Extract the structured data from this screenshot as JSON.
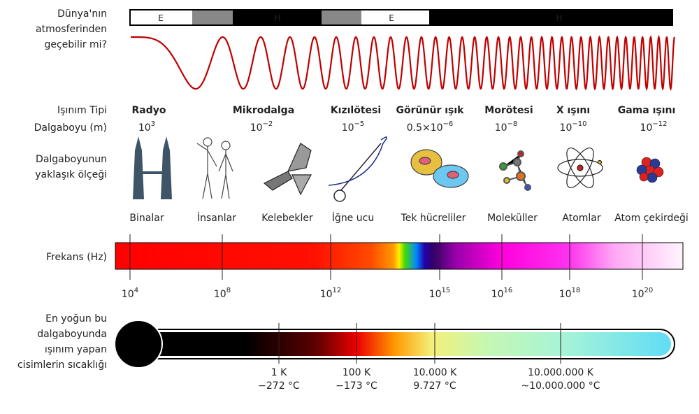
{
  "row_labels": {
    "atmosphere": [
      "Dünya'nın",
      "atmosferinden",
      "geçebilir mi?"
    ],
    "type": "Işınım Tipi",
    "wavelength": "Dalgaboyu (m)",
    "scale": [
      "Dalgaboyunun",
      "yaklaşık ölçeği"
    ],
    "frequency": "Frekans (Hz)",
    "temperature": [
      "En yoğun bu",
      "dalgaboyunda",
      "ışınım yapan",
      "cisimlerin sıcaklığı"
    ]
  },
  "atmosphere": [
    "E",
    "H",
    "E",
    "H"
  ],
  "types": [
    "Radyo",
    "Mikrodalga",
    "Kızılötesi",
    "Görünür ışık",
    "Morötesi",
    "X ışını",
    "Gama ışını"
  ],
  "wavelengths": [
    {
      "base": "10",
      "exp": "3"
    },
    {
      "base": "10",
      "exp": "−2"
    },
    {
      "base": "10",
      "exp": "−5"
    },
    {
      "base": "0.5×10",
      "exp": "−6"
    },
    {
      "base": "10",
      "exp": "−8"
    },
    {
      "base": "10",
      "exp": "−10"
    },
    {
      "base": "10",
      "exp": "−12"
    }
  ],
  "scales": [
    "Binalar",
    "İnsanlar",
    "Kelebekler",
    "İğne ucu",
    "Tek hücreliler",
    "Moleküller",
    "Atomlar",
    "Atom çekirdeği"
  ],
  "frequencies": [
    {
      "base": "10",
      "exp": "4"
    },
    {
      "base": "10",
      "exp": "8"
    },
    {
      "base": "10",
      "exp": "12"
    },
    {
      "base": "10",
      "exp": "15"
    },
    {
      "base": "10",
      "exp": "16"
    },
    {
      "base": "10",
      "exp": "18"
    },
    {
      "base": "10",
      "exp": "20"
    }
  ],
  "temperatures": [
    {
      "kelvin": "1 K",
      "celsius": "−272 °C"
    },
    {
      "kelvin": "100 K",
      "celsius": "−173 °C"
    },
    {
      "kelvin": "10.000 K",
      "celsius": "9.727 °C"
    },
    {
      "kelvin": "10.000.000 K",
      "celsius": "~10.000.000 °C"
    }
  ]
}
